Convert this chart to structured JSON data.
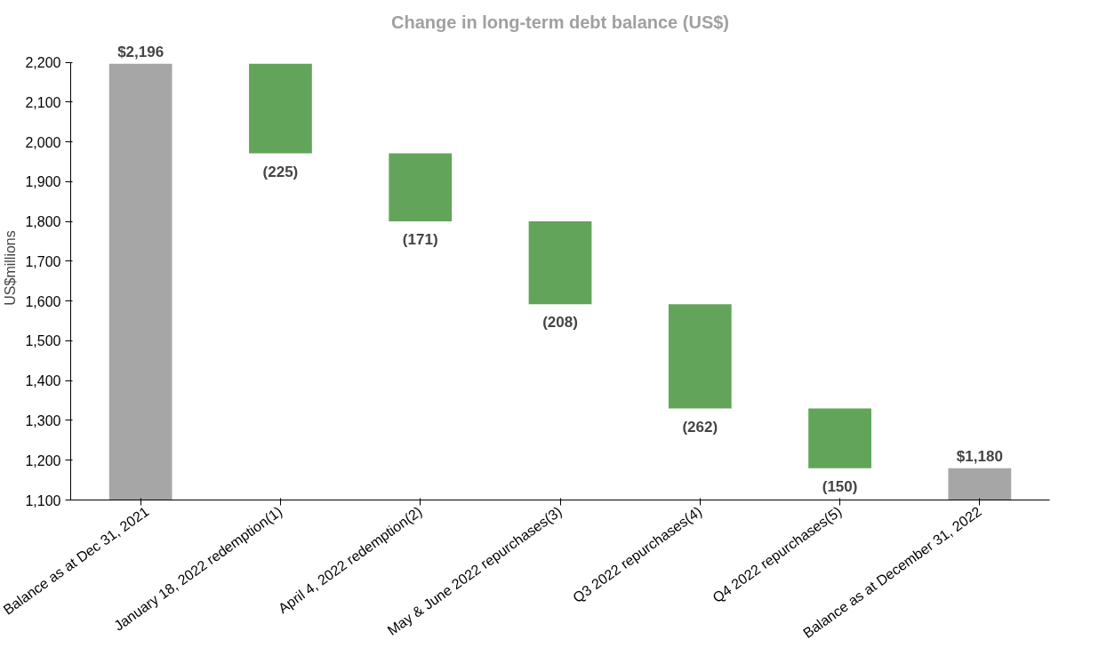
{
  "chart_data": {
    "type": "bar",
    "title": "Change in long-term debt balance (US$)",
    "ylabel": "US$millions",
    "categories": [
      "Balance as at Dec 31, 2021",
      "January 18, 2022 redemption(1)",
      "April 4, 2022 redemption(2)",
      "May & June 2022 repurchases(3)",
      "Q3 2022 repurchases(4)",
      "Q4 2022 repurchases(5)",
      "Balance as at December 31, 2022"
    ],
    "values": [
      2196,
      -225,
      -171,
      -208,
      -262,
      -150,
      1180
    ],
    "base": [
      0,
      2196,
      1971,
      1800,
      1592,
      1330,
      0
    ],
    "colors": [
      "#a6a6a6",
      "#62a55a",
      "#62a55a",
      "#62a55a",
      "#62a55a",
      "#62a55a",
      "#a6a6a6"
    ],
    "value_labels": [
      "$2,196",
      "(225)",
      "(171)",
      "(208)",
      "(262)",
      "(150)",
      "$1,180"
    ],
    "ylim": [
      1100,
      2200
    ],
    "yticks": [
      {
        "value": 1100,
        "label": "1,100"
      },
      {
        "value": 1200,
        "label": "1,200"
      },
      {
        "value": 1300,
        "label": "1,300"
      },
      {
        "value": 1400,
        "label": "1,400"
      },
      {
        "value": 1500,
        "label": "1,500"
      },
      {
        "value": 1600,
        "label": "1,600"
      },
      {
        "value": 1700,
        "label": "1,700"
      },
      {
        "value": 1800,
        "label": "1,800"
      },
      {
        "value": 1900,
        "label": "1,900"
      },
      {
        "value": 2000,
        "label": "2,000"
      },
      {
        "value": 2100,
        "label": "2,100"
      },
      {
        "value": 2200,
        "label": "2,200"
      }
    ],
    "grid": false
  }
}
